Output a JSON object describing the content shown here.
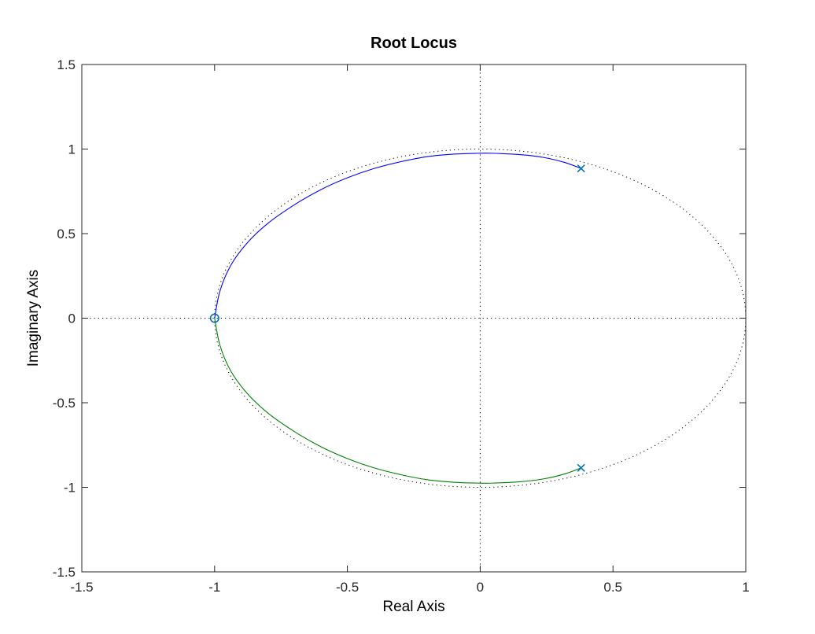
{
  "chart_data": {
    "type": "line",
    "title": "Root Locus",
    "xlabel": "Real Axis",
    "ylabel": "Imaginary Axis",
    "xlim": [
      -1.5,
      1
    ],
    "ylim": [
      -1.5,
      1.5
    ],
    "xticks": [
      -1.5,
      -1,
      -0.5,
      0,
      0.5,
      1
    ],
    "yticks": [
      -1.5,
      -1,
      -0.5,
      0,
      0.5,
      1,
      1.5
    ],
    "xtick_labels": [
      "-1.5",
      "-1",
      "-0.5",
      "0",
      "0.5",
      "1"
    ],
    "ytick_labels": [
      "-1.5",
      "-1",
      "-0.5",
      "0",
      "0.5",
      "1",
      "1.5"
    ],
    "grid": false,
    "reference_lines": {
      "unit_circle": true,
      "real_axis": true,
      "imaginary_axis": true,
      "color": "#000000"
    },
    "series": [
      {
        "branch": "upper",
        "color": "#0000ff",
        "x": [
          0.38,
          0.32,
          0.24,
          0.15,
          0.05,
          -0.01,
          -0.1,
          -0.2,
          -0.3,
          -0.4,
          -0.5,
          -0.6,
          -0.7,
          -0.8,
          -0.88,
          -0.94,
          -0.98,
          -1.0
        ],
        "y": [
          0.885,
          0.92,
          0.95,
          0.967,
          0.975,
          0.975,
          0.97,
          0.955,
          0.925,
          0.885,
          0.83,
          0.76,
          0.67,
          0.56,
          0.44,
          0.31,
          0.16,
          0.0
        ]
      },
      {
        "branch": "lower",
        "color": "#008000",
        "x": [
          0.38,
          0.32,
          0.24,
          0.15,
          0.05,
          -0.01,
          -0.1,
          -0.2,
          -0.3,
          -0.4,
          -0.5,
          -0.6,
          -0.7,
          -0.8,
          -0.88,
          -0.94,
          -0.98,
          -1.0
        ],
        "y": [
          -0.885,
          -0.92,
          -0.95,
          -0.967,
          -0.975,
          -0.975,
          -0.97,
          -0.955,
          -0.925,
          -0.885,
          -0.83,
          -0.76,
          -0.67,
          -0.56,
          -0.44,
          -0.31,
          -0.16,
          0.0
        ]
      }
    ],
    "poles": [
      {
        "x": 0.38,
        "y": 0.885
      },
      {
        "x": 0.38,
        "y": -0.885
      }
    ],
    "zeros": [
      {
        "x": -1.0,
        "y": 0.0
      }
    ],
    "marker_color": "#0072bd"
  }
}
